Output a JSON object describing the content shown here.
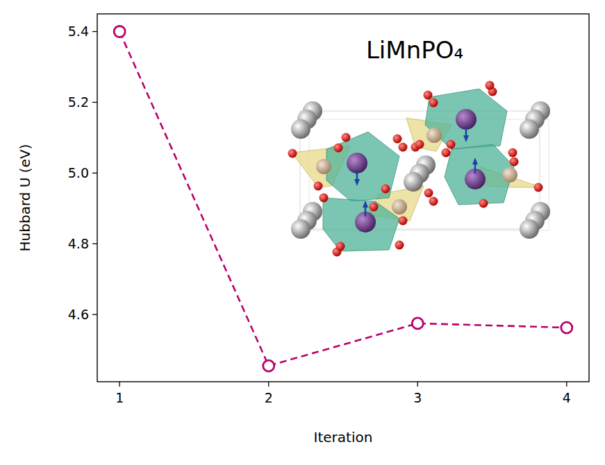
{
  "chart_data": {
    "type": "line",
    "title": "LiMnPO₄",
    "x_label": "Iteration",
    "y_label": "Hubbard U (eV)",
    "x": [
      1,
      2,
      3,
      4
    ],
    "values": [
      5.4,
      4.455,
      4.575,
      4.563
    ],
    "color": "#b8006b",
    "marker": "circle",
    "line_style": "dashed",
    "xlim": [
      0.85,
      4.15
    ],
    "ylim": [
      4.41,
      5.45
    ],
    "xticks": [
      1,
      2,
      3,
      4
    ],
    "yticks": [
      4.6,
      4.8,
      {
        "value": 5,
        "label": "5.0"
      },
      5.2,
      5.4
    ]
  }
}
